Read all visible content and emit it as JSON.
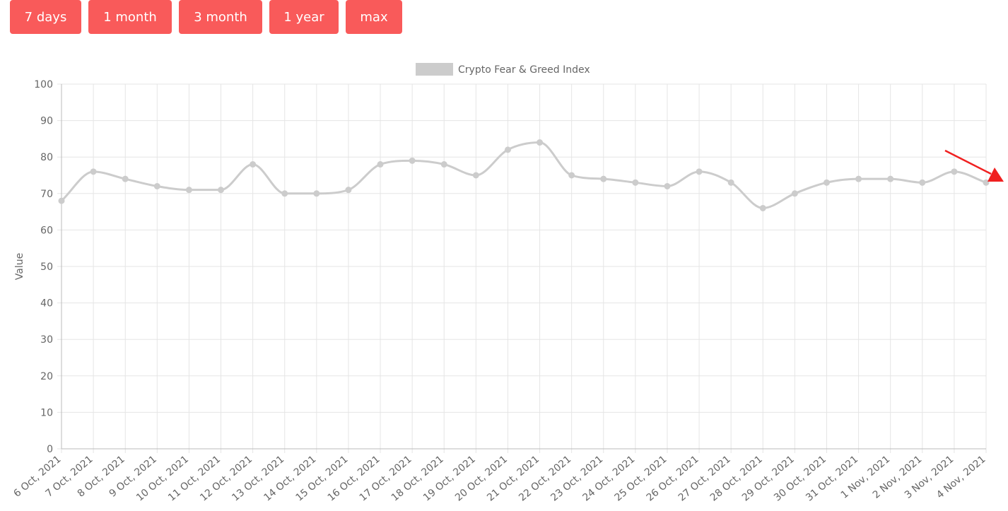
{
  "range_buttons": [
    {
      "label": "7 days"
    },
    {
      "label": "1 month"
    },
    {
      "label": "3 month"
    },
    {
      "label": "1 year"
    },
    {
      "label": "max"
    }
  ],
  "colors": {
    "button": "#f95a5a",
    "button_text": "#ffffff",
    "series_line": "#cccccc",
    "grid": "#e5e5e5",
    "tick_text": "#666666",
    "annotation_arrow": "#f02020"
  },
  "chart_data": {
    "type": "line",
    "title": "",
    "xlabel": "",
    "ylabel": "Value",
    "ylim": [
      0,
      100
    ],
    "yticks": [
      0,
      10,
      20,
      30,
      40,
      50,
      60,
      70,
      80,
      90,
      100
    ],
    "grid": true,
    "legend": "top-center",
    "categories": [
      "6 Oct, 2021",
      "7 Oct, 2021",
      "8 Oct, 2021",
      "9 Oct, 2021",
      "10 Oct, 2021",
      "11 Oct, 2021",
      "12 Oct, 2021",
      "13 Oct, 2021",
      "14 Oct, 2021",
      "15 Oct, 2021",
      "16 Oct, 2021",
      "17 Oct, 2021",
      "18 Oct, 2021",
      "19 Oct, 2021",
      "20 Oct, 2021",
      "21 Oct, 2021",
      "22 Oct, 2021",
      "23 Oct, 2021",
      "24 Oct, 2021",
      "25 Oct, 2021",
      "26 Oct, 2021",
      "27 Oct, 2021",
      "28 Oct, 2021",
      "29 Oct, 2021",
      "30 Oct, 2021",
      "31 Oct, 2021",
      "1 Nov, 2021",
      "2 Nov, 2021",
      "3 Nov, 2021",
      "4 Nov, 2021"
    ],
    "series": [
      {
        "name": "Crypto Fear & Greed Index",
        "values": [
          68,
          76,
          74,
          72,
          71,
          71,
          78,
          70,
          70,
          71,
          78,
          79,
          78,
          75,
          82,
          84,
          75,
          74,
          73,
          72,
          76,
          73,
          66,
          70,
          73,
          74,
          74,
          73,
          76,
          73
        ]
      }
    ]
  }
}
